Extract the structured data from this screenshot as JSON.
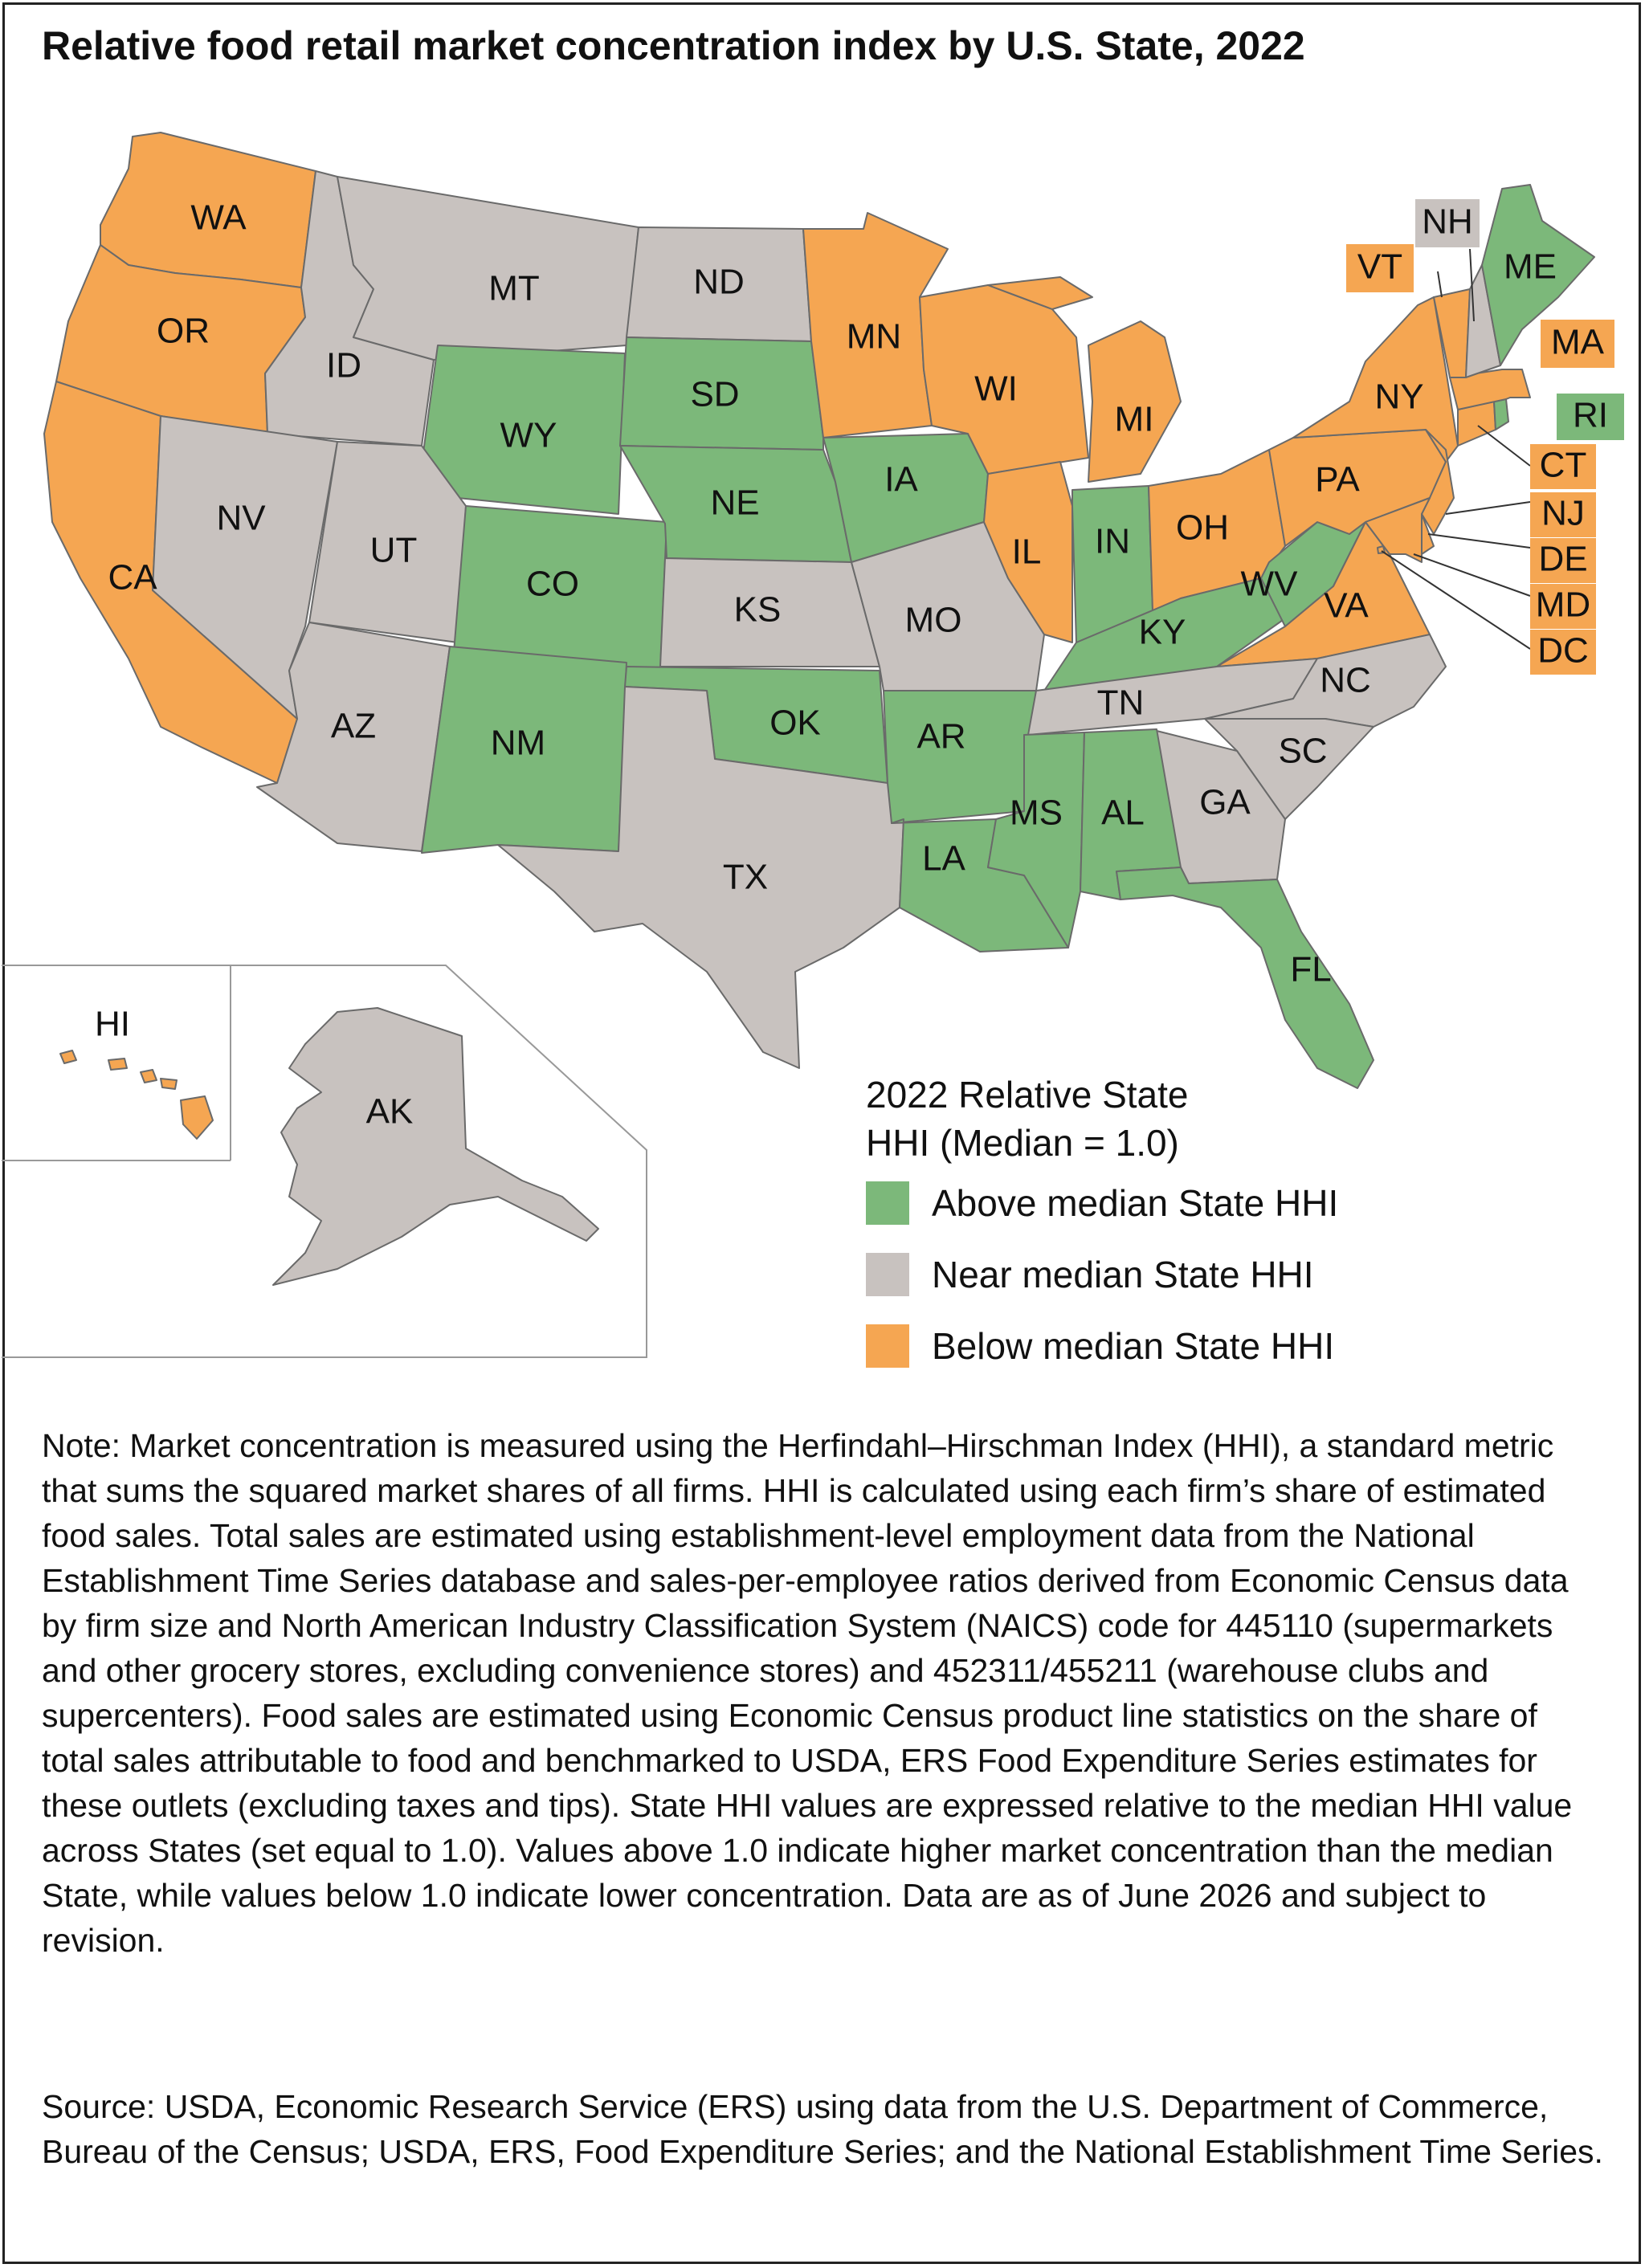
{
  "title": "Relative food retail market concentration index by U.S. State, 2022",
  "colors": {
    "above": "#7cb87a",
    "near": "#c8c2bf",
    "below": "#f5a652",
    "border": "#6a6a6a"
  },
  "legend": {
    "title_line1": "2022 Relative State",
    "title_line2": "HHI (Median = 1.0)",
    "items": [
      {
        "label": "Above median State HHI",
        "category": "above"
      },
      {
        "label": "Near median State HHI",
        "category": "near"
      },
      {
        "label": "Below median State HHI",
        "category": "below"
      }
    ]
  },
  "states": {
    "WA": "below",
    "OR": "below",
    "CA": "below",
    "ID": "near",
    "NV": "near",
    "MT": "near",
    "WY": "above",
    "UT": "near",
    "AZ": "near",
    "CO": "above",
    "NM": "above",
    "ND": "near",
    "SD": "above",
    "NE": "above",
    "KS": "near",
    "OK": "above",
    "TX": "near",
    "MN": "below",
    "IA": "above",
    "MO": "near",
    "AR": "above",
    "LA": "above",
    "WI": "below",
    "IL": "below",
    "MI": "below",
    "IN": "above",
    "OH": "below",
    "KY": "above",
    "TN": "near",
    "MS": "above",
    "AL": "above",
    "GA": "near",
    "FL": "above",
    "SC": "near",
    "NC": "near",
    "VA": "below",
    "WV": "above",
    "PA": "below",
    "NY": "below",
    "VT": "below",
    "NH": "near",
    "ME": "above",
    "MA": "below",
    "RI": "above",
    "CT": "below",
    "NJ": "below",
    "DE": "below",
    "MD": "below",
    "DC": "below",
    "AK": "near",
    "HI": "below"
  },
  "state_labels": {
    "WA": "WA",
    "OR": "OR",
    "CA": "CA",
    "ID": "ID",
    "NV": "NV",
    "MT": "MT",
    "WY": "WY",
    "UT": "UT",
    "AZ": "AZ",
    "CO": "CO",
    "NM": "NM",
    "ND": "ND",
    "SD": "SD",
    "NE": "NE",
    "KS": "KS",
    "OK": "OK",
    "TX": "TX",
    "MN": "MN",
    "IA": "IA",
    "MO": "MO",
    "AR": "AR",
    "LA": "LA",
    "WI": "WI",
    "IL": "IL",
    "MI": "MI",
    "IN": "IN",
    "OH": "OH",
    "KY": "KY",
    "TN": "TN",
    "MS": "MS",
    "AL": "AL",
    "GA": "GA",
    "FL": "FL",
    "SC": "SC",
    "NC": "NC",
    "VA": "VA",
    "WV": "WV",
    "PA": "PA",
    "NY": "NY",
    "VT": "VT",
    "NH": "NH",
    "ME": "ME",
    "MA": "MA",
    "RI": "RI",
    "CT": "CT",
    "NJ": "NJ",
    "DE": "DE",
    "MD": "MD",
    "DC": "DC",
    "AK": "AK",
    "HI": "HI"
  },
  "note": "Note: Market concentration is measured using the Herfindahl–Hirschman Index (HHI), a standard metric that sums the squared market shares of all firms. HHI is calculated using each firm’s share of estimated food sales. Total sales are estimated using establishment-level employment data from the National Establishment Time Series database and sales-per-employee ratios derived from Economic Census data by firm size and North American Industry Classification System (NAICS) code for 445110 (supermarkets and other grocery stores, excluding convenience stores) and 452311/455211 (warehouse clubs and supercenters). Food sales are estimated using Economic Census product line statistics on the share of total sales attributable to food and benchmarked to USDA, ERS Food Expenditure Series estimates for these outlets (excluding taxes and tips). State HHI values are expressed relative to the median HHI value across States (set equal to 1.0). Values above 1.0 indicate higher market concentration than the median State, while values below 1.0 indicate lower concentration. Data are as of June 2026 and subject to revision.",
  "source": "Source: USDA, Economic Research Service (ERS) using data from the U.S. Department of Commerce, Bureau of the Census; USDA, ERS, Food Expenditure Series; and the National Establishment Time Series."
}
